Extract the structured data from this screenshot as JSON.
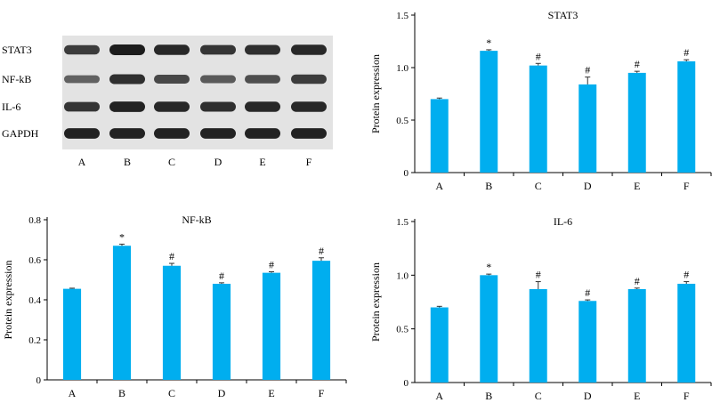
{
  "blot": {
    "proteins": [
      "STAT3",
      "NF-kB",
      "IL-6",
      "GAPDH"
    ],
    "lanes": [
      "A",
      "B",
      "C",
      "D",
      "E",
      "F"
    ]
  },
  "chart_data": [
    {
      "type": "bar",
      "title": "STAT3",
      "ylabel": "Protein expression",
      "xlabel": "",
      "categories": [
        "A",
        "B",
        "C",
        "D",
        "E",
        "F"
      ],
      "values": [
        0.7,
        1.16,
        1.02,
        0.84,
        0.95,
        1.06
      ],
      "errors": [
        0.01,
        0.01,
        0.02,
        0.07,
        0.015,
        0.015
      ],
      "markers": [
        "",
        "*",
        "#",
        "#",
        "#",
        "#"
      ],
      "ylim": [
        0,
        1.5
      ],
      "yticks": [
        "0",
        "0.5",
        "1.0",
        "1.5"
      ],
      "bar_color": "#00AEEF"
    },
    {
      "type": "bar",
      "title": "NF-kB",
      "ylabel": "Protein expression",
      "xlabel": "",
      "categories": [
        "A",
        "B",
        "C",
        "D",
        "E",
        "F"
      ],
      "values": [
        0.455,
        0.67,
        0.57,
        0.48,
        0.535,
        0.595
      ],
      "errors": [
        0.003,
        0.008,
        0.012,
        0.005,
        0.005,
        0.015
      ],
      "markers": [
        "",
        "*",
        "#",
        "#",
        "#",
        "#"
      ],
      "ylim": [
        0,
        0.8
      ],
      "yticks": [
        "0",
        "0.2",
        "0.4",
        "0.6",
        "0.8"
      ],
      "bar_color": "#00AEEF"
    },
    {
      "type": "bar",
      "title": "IL-6",
      "ylabel": "Protein expression",
      "xlabel": "",
      "categories": [
        "A",
        "B",
        "C",
        "D",
        "E",
        "F"
      ],
      "values": [
        0.7,
        1.0,
        0.87,
        0.76,
        0.87,
        0.92
      ],
      "errors": [
        0.01,
        0.01,
        0.07,
        0.01,
        0.01,
        0.02
      ],
      "markers": [
        "",
        "*",
        "#",
        "#",
        "#",
        "#"
      ],
      "ylim": [
        0,
        1.5
      ],
      "yticks": [
        "0",
        "0.5",
        "1.0",
        "1.5"
      ],
      "bar_color": "#00AEEF"
    }
  ]
}
